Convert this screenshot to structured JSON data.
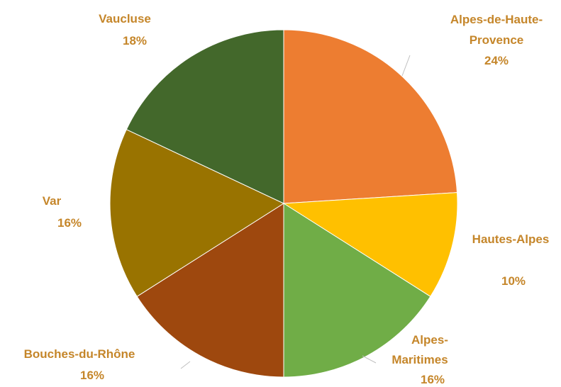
{
  "chart_data": {
    "type": "pie",
    "categories": [
      "Alpes-de-Haute-Provence",
      "Hautes-Alpes",
      "Alpes-Maritimes",
      "Bouches-du-Rhône",
      "Var",
      "Vaucluse"
    ],
    "values": [
      24,
      10,
      16,
      16,
      16,
      18
    ],
    "value_labels": [
      "24%",
      "10%",
      "16%",
      "16%",
      "16%",
      "18%"
    ],
    "colors": [
      "#ED7D31",
      "#FFC000",
      "#70AD47",
      "#9E480E",
      "#997300",
      "#43682B"
    ],
    "label_color": "#C5862A",
    "start_angle_deg": 0,
    "direction": "clockwise",
    "legend": "none"
  }
}
